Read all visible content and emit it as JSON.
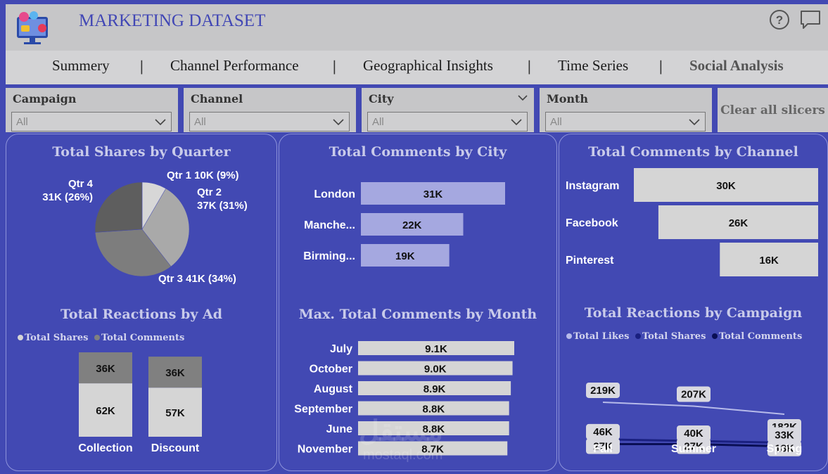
{
  "header": {
    "title": "MARKETING DATASET",
    "help_icon": "help-circle-icon",
    "chat_icon": "chat-bubble-icon"
  },
  "tabs": [
    {
      "label": "Summery"
    },
    {
      "label": "Channel Performance"
    },
    {
      "label": "Geographical Insights"
    },
    {
      "label": "Time Series"
    },
    {
      "label": "Social Analysis",
      "active": true
    }
  ],
  "slicers": [
    {
      "label": "Campaign",
      "value": "All"
    },
    {
      "label": "Channel",
      "value": "All"
    },
    {
      "label": "City",
      "value": "All"
    },
    {
      "label": "Month",
      "value": "All"
    }
  ],
  "clear_button": "Clear all slicers",
  "watermark": {
    "arabic": "مستقل",
    "latin": "mostaql.com"
  },
  "chart_data": [
    {
      "type": "pie",
      "title": "Total Shares by Quarter",
      "categories": [
        "Qtr 1",
        "Qtr 2",
        "Qtr 3",
        "Qtr 4"
      ],
      "values": [
        10,
        37,
        41,
        31
      ],
      "unit": "K",
      "labels": [
        "Qtr 1 10K (9%)",
        "Qtr 2 37K (31%)",
        "Qtr 3 41K (34%)",
        "Qtr 4 31K (26%)"
      ],
      "colors": [
        "#d7d7d7",
        "#a9a9a9",
        "#7d7d7d",
        "#5e5e5e"
      ]
    },
    {
      "type": "bar",
      "orientation": "horizontal",
      "title": "Total Comments by City",
      "categories": [
        "London",
        "Manche...",
        "Birming..."
      ],
      "values": [
        31,
        22,
        19
      ],
      "labels": [
        "31K",
        "22K",
        "19K"
      ],
      "color": "#a5a8e0"
    },
    {
      "type": "bar",
      "orientation": "horizontal",
      "title": "Total Comments by Channel",
      "categories": [
        "Instagram",
        "Facebook",
        "Pinterest"
      ],
      "values": [
        30,
        26,
        16
      ],
      "labels": [
        "30K",
        "26K",
        "16K"
      ],
      "color": "#d5d5d5"
    },
    {
      "type": "bar",
      "stacked": true,
      "title": "Total Reactions by Ad",
      "categories": [
        "Collection",
        "Discount"
      ],
      "series": [
        {
          "name": "Total Shares",
          "values": [
            62,
            57
          ],
          "labels": [
            "62K",
            "57K"
          ],
          "color": "#d5d5d5"
        },
        {
          "name": "Total Comments",
          "values": [
            36,
            36
          ],
          "labels": [
            "36K",
            "36K"
          ],
          "color": "#808080"
        }
      ]
    },
    {
      "type": "bar",
      "orientation": "horizontal",
      "title": "Max. Total Comments by Month",
      "categories": [
        "July",
        "October",
        "August",
        "September",
        "June",
        "November"
      ],
      "values": [
        9.1,
        9.0,
        8.9,
        8.8,
        8.8,
        8.7
      ],
      "labels": [
        "9.1K",
        "9.0K",
        "8.9K",
        "8.8K",
        "8.8K",
        "8.7K"
      ],
      "color": "#d5d5d5"
    },
    {
      "type": "line",
      "title": "Total Reactions by Campaign",
      "categories": [
        "Fall",
        "Summer",
        "Spring"
      ],
      "series": [
        {
          "name": "Total Likes",
          "values": [
            219,
            207,
            182
          ],
          "labels": [
            "219K",
            "207K",
            "182K"
          ],
          "color": "#b7bbea"
        },
        {
          "name": "Total Shares",
          "values": [
            46,
            40,
            33
          ],
          "labels": [
            "46K",
            "40K",
            "33K"
          ],
          "color": "#1a2080"
        },
        {
          "name": "Total Comments",
          "values": [
            27,
            27,
            18
          ],
          "labels": [
            "27K",
            "27K",
            "18K"
          ],
          "color": "#0a0f55"
        }
      ]
    }
  ]
}
